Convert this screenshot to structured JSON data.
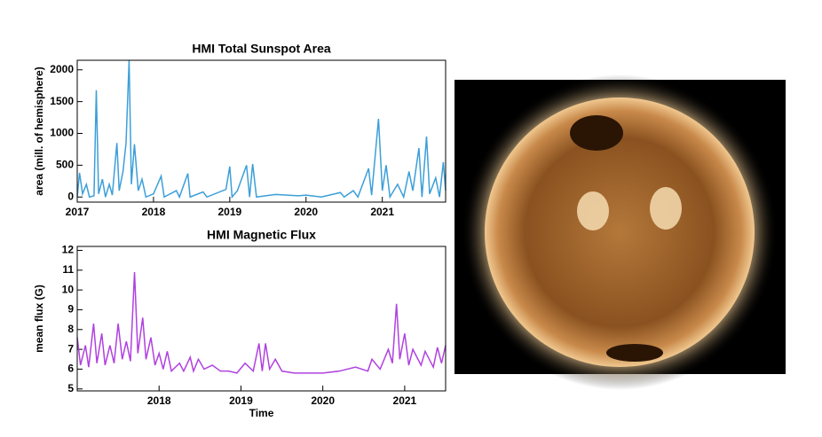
{
  "chart_data": [
    {
      "type": "line",
      "title": "HMI Total Sunspot Area",
      "ylabel": "area (mill. of hemisphere)",
      "xlim": [
        2017,
        2021.83
      ],
      "xticks": [
        2017,
        2018,
        2019,
        2020,
        2021
      ],
      "ylim": [
        -80,
        2150
      ],
      "yticks": [
        0,
        500,
        1000,
        1500,
        2000
      ],
      "series": [
        {
          "name": "area",
          "color": "#3c9fd8",
          "x": [
            2017.0,
            2017.03,
            2017.07,
            2017.12,
            2017.16,
            2017.22,
            2017.25,
            2017.28,
            2017.33,
            2017.37,
            2017.42,
            2017.46,
            2017.52,
            2017.55,
            2017.6,
            2017.64,
            2017.68,
            2017.71,
            2017.75,
            2017.8,
            2017.85,
            2017.9,
            2018.0,
            2018.1,
            2018.14,
            2018.3,
            2018.34,
            2018.45,
            2018.48,
            2018.65,
            2018.7,
            2018.95,
            2019.0,
            2019.03,
            2019.1,
            2019.22,
            2019.26,
            2019.3,
            2019.35,
            2019.6,
            2019.9,
            2020.0,
            2020.2,
            2020.45,
            2020.5,
            2020.62,
            2020.68,
            2020.82,
            2020.86,
            2020.95,
            2021.0,
            2021.05,
            2021.1,
            2021.2,
            2021.28,
            2021.35,
            2021.4,
            2021.48,
            2021.52,
            2021.58,
            2021.62,
            2021.7,
            2021.75,
            2021.8,
            2021.83
          ],
          "values": [
            0,
            380,
            50,
            200,
            0,
            20,
            1680,
            50,
            280,
            0,
            200,
            30,
            850,
            100,
            400,
            850,
            2150,
            200,
            830,
            100,
            280,
            0,
            50,
            330,
            0,
            100,
            0,
            370,
            0,
            80,
            0,
            120,
            480,
            0,
            100,
            500,
            0,
            520,
            0,
            40,
            20,
            30,
            0,
            70,
            0,
            100,
            0,
            450,
            30,
            1230,
            100,
            500,
            0,
            200,
            0,
            400,
            100,
            770,
            0,
            950,
            50,
            300,
            0,
            550,
            100
          ]
        }
      ]
    },
    {
      "type": "line",
      "title": "HMI Magnetic Flux",
      "ylabel": "mean flux (G)",
      "xlabel": "Time",
      "xlim": [
        2017.0,
        2021.5
      ],
      "xticks": [
        2018,
        2019,
        2020,
        2021
      ],
      "ylim": [
        4.9,
        12.2
      ],
      "yticks": [
        5,
        6,
        7,
        8,
        9,
        10,
        11,
        12
      ],
      "series": [
        {
          "name": "flux",
          "color": "#b041e0",
          "x": [
            2017.0,
            2017.04,
            2017.1,
            2017.14,
            2017.2,
            2017.24,
            2017.3,
            2017.34,
            2017.4,
            2017.45,
            2017.5,
            2017.55,
            2017.6,
            2017.65,
            2017.7,
            2017.74,
            2017.8,
            2017.84,
            2017.9,
            2017.95,
            2018.0,
            2018.05,
            2018.1,
            2018.15,
            2018.25,
            2018.3,
            2018.38,
            2018.42,
            2018.48,
            2018.55,
            2018.65,
            2018.75,
            2018.85,
            2018.95,
            2019.05,
            2019.15,
            2019.22,
            2019.26,
            2019.3,
            2019.35,
            2019.42,
            2019.5,
            2019.65,
            2019.8,
            2020.0,
            2020.2,
            2020.4,
            2020.55,
            2020.6,
            2020.7,
            2020.8,
            2020.85,
            2020.9,
            2020.94,
            2021.0,
            2021.05,
            2021.1,
            2021.2,
            2021.25,
            2021.35,
            2021.4,
            2021.45,
            2021.5
          ],
          "values": [
            7.6,
            6.2,
            7.2,
            6.1,
            8.3,
            6.3,
            7.8,
            6.2,
            7.2,
            6.3,
            8.3,
            6.5,
            7.4,
            6.4,
            10.9,
            6.8,
            8.6,
            6.5,
            7.6,
            6.2,
            6.8,
            6.0,
            6.9,
            5.9,
            6.3,
            5.9,
            6.6,
            5.9,
            6.5,
            6.0,
            6.2,
            5.9,
            5.9,
            5.8,
            6.3,
            5.9,
            7.3,
            5.9,
            7.3,
            6.0,
            6.5,
            5.9,
            5.8,
            5.8,
            5.8,
            5.9,
            6.1,
            5.9,
            6.5,
            6.0,
            7.0,
            6.3,
            9.3,
            6.5,
            7.8,
            6.2,
            7.0,
            6.2,
            6.9,
            6.1,
            7.1,
            6.3,
            7.2
          ]
        }
      ]
    }
  ]
}
